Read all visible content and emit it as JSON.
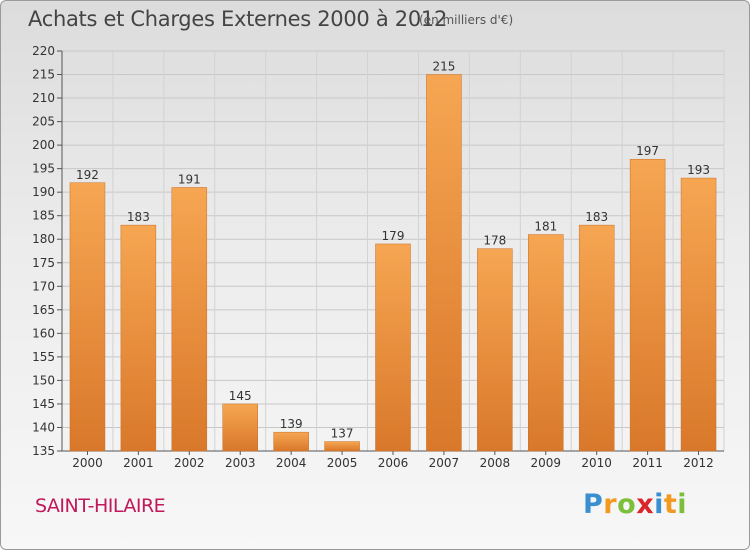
{
  "header": {
    "title": "Achats et Charges Externes 2000 à 2012",
    "subtitle": "(en milliers d'€)"
  },
  "footer": {
    "commune": "SAINT-HILAIRE",
    "logo_letters": [
      "P",
      "r",
      "o",
      "x",
      "i",
      "t",
      "i"
    ],
    "logo_colors": [
      "#3a8fd0",
      "#f29a1f",
      "#7bbf3a",
      "#d9262b",
      "#3a8fd0",
      "#f29a1f",
      "#7bbf3a"
    ]
  },
  "chart_data": {
    "type": "bar",
    "title": "Achats et Charges Externes 2000 à 2012",
    "subtitle": "(en milliers d'€)",
    "categories": [
      "2000",
      "2001",
      "2002",
      "2003",
      "2004",
      "2005",
      "2006",
      "2007",
      "2008",
      "2009",
      "2010",
      "2011",
      "2012"
    ],
    "values": [
      192,
      183,
      191,
      145,
      139,
      137,
      179,
      215,
      178,
      181,
      183,
      197,
      193
    ],
    "ylim": [
      135,
      220
    ],
    "yticks": [
      135,
      140,
      145,
      150,
      155,
      160,
      165,
      170,
      175,
      180,
      185,
      190,
      195,
      200,
      205,
      210,
      215,
      220
    ],
    "grid": true,
    "bar_color": "#f0943c",
    "xlabel": "",
    "ylabel": ""
  }
}
